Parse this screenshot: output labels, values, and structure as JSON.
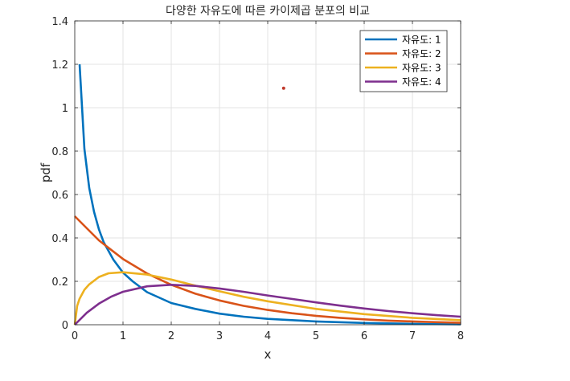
{
  "chart_data": {
    "type": "line",
    "title": "다양한 자유도에 따른 카이제곱 분포의 비교",
    "xlabel": "x",
    "ylabel": "pdf",
    "xlim": [
      0,
      8
    ],
    "ylim": [
      0,
      1.4
    ],
    "xticks": [
      0,
      1,
      2,
      3,
      4,
      5,
      6,
      7,
      8
    ],
    "yticks": [
      0,
      0.2,
      0.4,
      0.6,
      0.8,
      1,
      1.2,
      1.4
    ],
    "xtick_labels": [
      "0",
      "1",
      "2",
      "3",
      "4",
      "5",
      "6",
      "7",
      "8"
    ],
    "ytick_labels": [
      "0",
      "0.2",
      "0.4",
      "0.6",
      "0.8",
      "1",
      "1.2",
      "1.4"
    ],
    "grid": true,
    "legend_position": "top-right",
    "series": [
      {
        "name": "자유도: 1",
        "color": "#0072BD",
        "x": [
          0.1,
          0.2,
          0.3,
          0.4,
          0.5,
          0.6,
          0.8,
          1.0,
          1.2,
          1.5,
          2.0,
          2.5,
          3.0,
          3.5,
          4.0,
          5.0,
          6.0,
          7.0,
          8.0
        ],
        "y": [
          1.2,
          0.81,
          0.63,
          0.52,
          0.44,
          0.38,
          0.3,
          0.24,
          0.2,
          0.15,
          0.1,
          0.073,
          0.051,
          0.037,
          0.027,
          0.015,
          0.008,
          0.004,
          0.002
        ]
      },
      {
        "name": "자유도: 2",
        "color": "#D95319",
        "x": [
          0,
          0.5,
          1,
          1.5,
          2,
          2.5,
          3,
          3.5,
          4,
          4.5,
          5,
          5.5,
          6,
          6.5,
          7,
          7.5,
          8
        ],
        "y": [
          0.5,
          0.389,
          0.303,
          0.236,
          0.184,
          0.143,
          0.112,
          0.087,
          0.068,
          0.053,
          0.041,
          0.032,
          0.025,
          0.019,
          0.015,
          0.012,
          0.009
        ]
      },
      {
        "name": "자유도: 3",
        "color": "#EDB120",
        "x": [
          0,
          0.05,
          0.1,
          0.2,
          0.3,
          0.5,
          0.7,
          1,
          1.5,
          2,
          2.5,
          3,
          3.5,
          4,
          5,
          6,
          7,
          8
        ],
        "y": [
          0,
          0.087,
          0.12,
          0.161,
          0.186,
          0.22,
          0.237,
          0.242,
          0.231,
          0.208,
          0.18,
          0.154,
          0.129,
          0.108,
          0.073,
          0.049,
          0.032,
          0.021
        ]
      },
      {
        "name": "자유도: 4",
        "color": "#7E2F8E",
        "x": [
          0,
          0.25,
          0.5,
          0.75,
          1,
          1.5,
          2,
          2.5,
          3,
          3.5,
          4,
          4.5,
          5,
          5.5,
          6,
          6.5,
          7,
          7.5,
          8
        ],
        "y": [
          0,
          0.055,
          0.097,
          0.129,
          0.152,
          0.177,
          0.184,
          0.179,
          0.167,
          0.152,
          0.135,
          0.119,
          0.103,
          0.088,
          0.075,
          0.063,
          0.053,
          0.044,
          0.037
        ]
      }
    ],
    "annotations": [
      {
        "type": "point",
        "x": 4.33,
        "y": 1.09,
        "color": "#C0392B"
      }
    ]
  }
}
